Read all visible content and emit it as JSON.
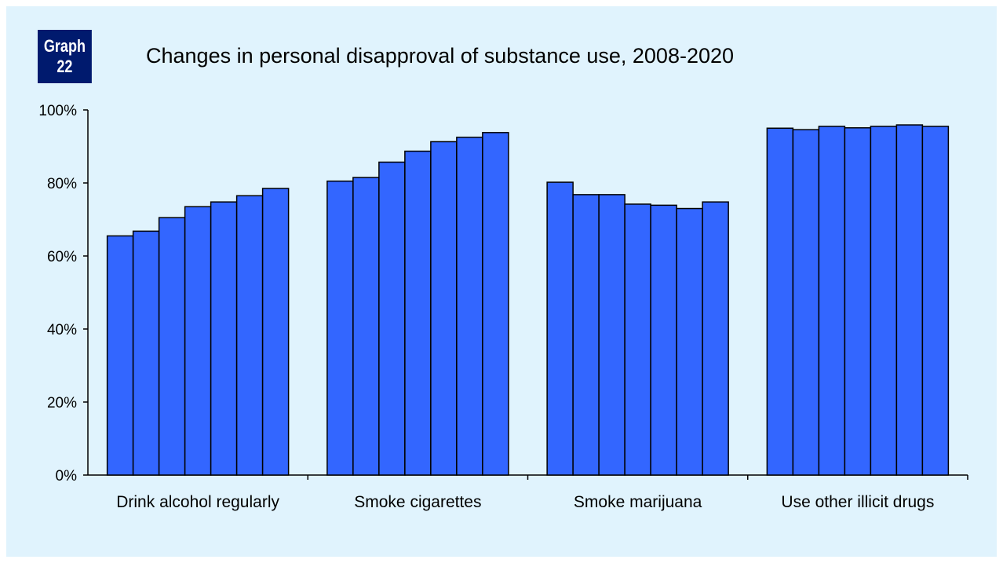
{
  "badge": {
    "line1": "Graph",
    "line2": "22"
  },
  "chart_data": {
    "type": "bar",
    "title": "Changes in personal disapproval of substance use, 2008-2020",
    "categories": [
      "Drink alcohol regularly",
      "Smoke cigarettes",
      "Smoke marijuana",
      "Use other illicit drugs"
    ],
    "series_per_category": 7,
    "values": [
      [
        65.5,
        66.8,
        70.5,
        73.5,
        74.8,
        76.5,
        78.5
      ],
      [
        80.5,
        81.5,
        85.7,
        88.7,
        91.3,
        92.5,
        93.8
      ],
      [
        80.2,
        76.8,
        76.8,
        74.2,
        73.9,
        73.0,
        74.8
      ],
      [
        95.0,
        94.6,
        95.5,
        95.1,
        95.5,
        95.9,
        95.5
      ]
    ],
    "yticks": [
      "0%",
      "20%",
      "40%",
      "60%",
      "80%",
      "100%"
    ],
    "ylim": [
      0,
      100
    ],
    "bar_color": "#3366ff",
    "grid": false,
    "legend": "none"
  }
}
